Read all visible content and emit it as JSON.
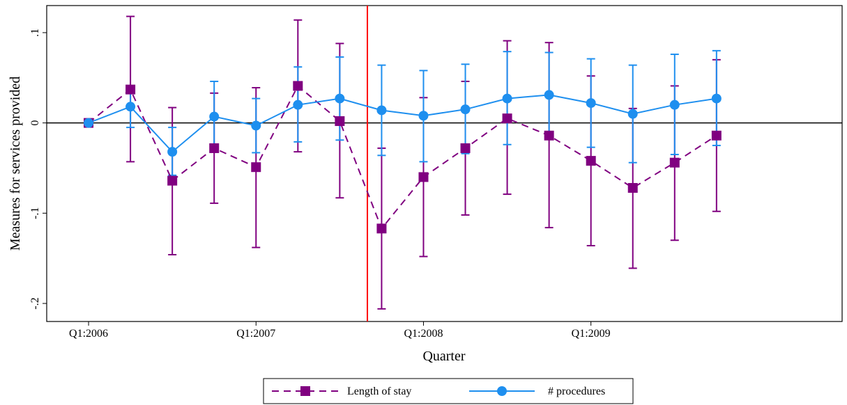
{
  "chart_data": {
    "type": "line",
    "xlabel": "Quarter",
    "ylabel": "Measures for services provided",
    "xlim": [
      -1,
      18
    ],
    "ylim": [
      -0.22,
      0.13
    ],
    "x_ticks": [
      {
        "x": 0,
        "label": "Q1:2006"
      },
      {
        "x": 4,
        "label": "Q1:2007"
      },
      {
        "x": 8,
        "label": "Q1:2008"
      },
      {
        "x": 12,
        "label": "Q1:2009"
      }
    ],
    "y_ticks": [
      {
        "y": 0.1,
        "label": ".1"
      },
      {
        "y": 0,
        "label": "0"
      },
      {
        "y": -0.1,
        "label": "-.1"
      },
      {
        "y": -0.2,
        "label": "-.2"
      }
    ],
    "reference_lines": {
      "horizontal_y": 0,
      "vertical_x": 6.66,
      "vertical_color": "#ff0000"
    },
    "x": [
      0,
      1,
      2,
      3,
      4,
      5,
      6,
      7,
      8,
      9,
      10,
      11,
      12,
      13,
      14,
      15
    ],
    "series": [
      {
        "name": "Length of stay",
        "color": "#800080",
        "marker": "square",
        "line": "dashed",
        "values": [
          0.0,
          0.037,
          -0.064,
          -0.028,
          -0.049,
          0.041,
          0.002,
          -0.117,
          -0.06,
          -0.028,
          0.005,
          -0.014,
          -0.042,
          -0.072,
          -0.044,
          -0.014
        ],
        "ci_low": [
          0.0,
          -0.043,
          -0.146,
          -0.089,
          -0.138,
          -0.032,
          -0.083,
          -0.206,
          -0.148,
          -0.102,
          -0.079,
          -0.116,
          -0.136,
          -0.161,
          -0.13,
          -0.098
        ],
        "ci_high": [
          0.0,
          0.118,
          0.017,
          0.033,
          0.039,
          0.114,
          0.088,
          -0.028,
          0.028,
          0.046,
          0.091,
          0.089,
          0.052,
          0.016,
          0.041,
          0.07
        ]
      },
      {
        "name": "# procedures",
        "color": "#1e8fef",
        "marker": "circle",
        "line": "solid",
        "values": [
          0.0,
          0.018,
          -0.032,
          0.007,
          -0.003,
          0.02,
          0.027,
          0.014,
          0.008,
          0.015,
          0.027,
          0.031,
          0.022,
          0.01,
          0.02,
          0.027
        ],
        "ci_low": [
          0.0,
          -0.005,
          -0.058,
          -0.026,
          -0.033,
          -0.021,
          -0.019,
          -0.036,
          -0.043,
          -0.034,
          -0.024,
          -0.018,
          -0.027,
          -0.044,
          -0.035,
          -0.025
        ],
        "ci_high": [
          0.0,
          0.041,
          -0.005,
          0.046,
          0.027,
          0.062,
          0.073,
          0.064,
          0.058,
          0.065,
          0.079,
          0.078,
          0.071,
          0.064,
          0.076,
          0.08
        ]
      }
    ],
    "legend": {
      "position": "bottom-center",
      "entries": [
        "Length of stay",
        "# procedures"
      ]
    }
  }
}
